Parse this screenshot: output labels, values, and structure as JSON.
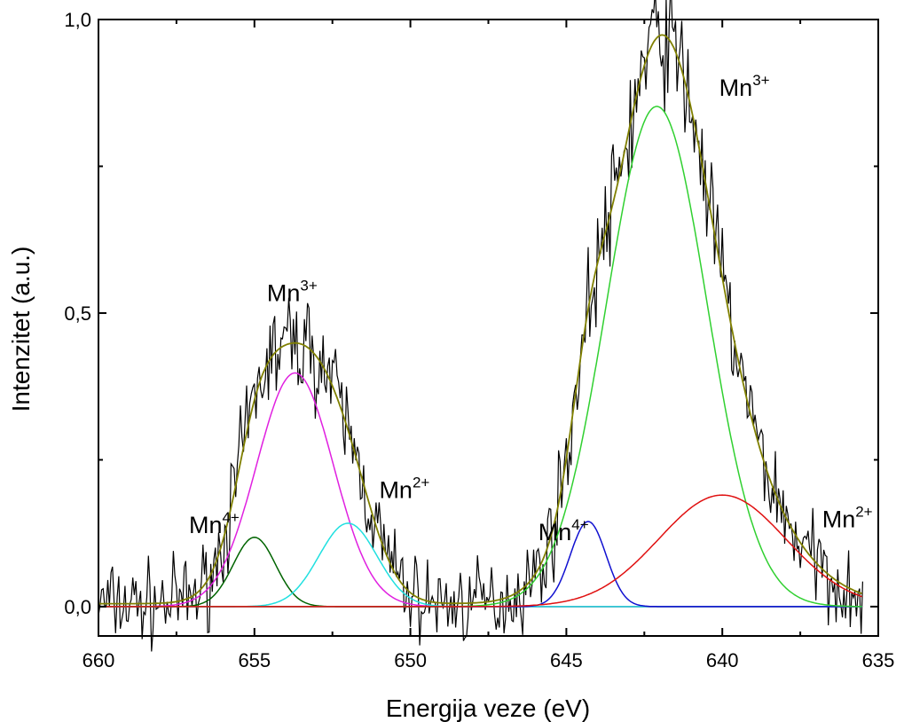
{
  "chart_data": {
    "type": "line",
    "xlabel": "Energija veze (eV)",
    "ylabel": "Intenzitet (a.u.)",
    "xlim": [
      660,
      635
    ],
    "ylim": [
      -0.05,
      1.0
    ],
    "x_reversed": true,
    "x_ticks": [
      660,
      655,
      650,
      645,
      640,
      635
    ],
    "x_tick_labels": [
      "660",
      "655",
      "650",
      "645",
      "640",
      "635"
    ],
    "y_ticks": [
      0.0,
      0.5,
      1.0
    ],
    "y_tick_labels": [
      "0,0",
      "0,5",
      "1,0"
    ],
    "grid": false,
    "legend": "none",
    "measured": {
      "x_range": [
        660,
        635.5
      ],
      "color": "#000000",
      "noise_amplitude": 0.035,
      "note_free": true
    },
    "components": [
      {
        "label": "Mn4+",
        "center": 655.0,
        "fwhm": 1.6,
        "height": 0.118,
        "color": "#006400"
      },
      {
        "label": "Mn3+",
        "center": 653.7,
        "fwhm": 2.9,
        "height": 0.398,
        "color": "#e020e0"
      },
      {
        "label": "Mn2+",
        "center": 652.0,
        "fwhm": 2.2,
        "height": 0.142,
        "color": "#20e0e0"
      },
      {
        "label": "Mn4+",
        "center": 644.3,
        "fwhm": 1.35,
        "height": 0.145,
        "color": "#1010d0"
      },
      {
        "label": "Mn3+",
        "center": 642.1,
        "fwhm": 3.8,
        "height": 0.852,
        "color": "#30d030"
      },
      {
        "label": "Mn2+",
        "center": 640.0,
        "fwhm": 4.8,
        "height": 0.19,
        "color": "#e01010"
      }
    ],
    "envelope": {
      "color": "#808000"
    },
    "baseline": {
      "color": "#555555"
    },
    "annotations": [
      {
        "base": "Mn",
        "sup": "4+",
        "x": 657.1,
        "y": 0.125
      },
      {
        "base": "Mn",
        "sup": "3+",
        "x": 654.6,
        "y": 0.52
      },
      {
        "base": "Mn",
        "sup": "2+",
        "x": 651.0,
        "y": 0.185
      },
      {
        "base": "Mn",
        "sup": "4+",
        "x": 645.9,
        "y": 0.113
      },
      {
        "base": "Mn",
        "sup": "3+",
        "x": 640.1,
        "y": 0.87
      },
      {
        "base": "Mn",
        "sup": "2+",
        "x": 636.8,
        "y": 0.135
      }
    ]
  }
}
